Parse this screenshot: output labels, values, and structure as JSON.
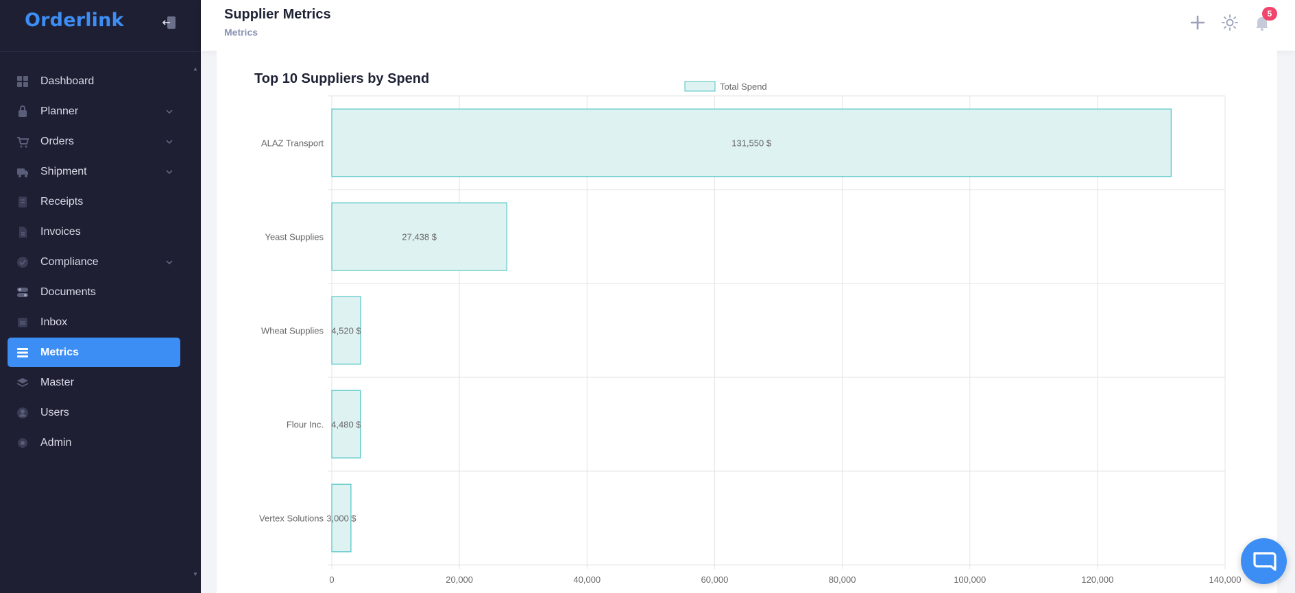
{
  "app": {
    "name": "Orderlink"
  },
  "sidebar": {
    "items": [
      {
        "label": "Dashboard",
        "icon": "dashboard-icon",
        "has_submenu": false
      },
      {
        "label": "Planner",
        "icon": "planner-icon",
        "has_submenu": true
      },
      {
        "label": "Orders",
        "icon": "orders-icon",
        "has_submenu": true
      },
      {
        "label": "Shipment",
        "icon": "shipment-icon",
        "has_submenu": true
      },
      {
        "label": "Receipts",
        "icon": "receipts-icon",
        "has_submenu": false
      },
      {
        "label": "Invoices",
        "icon": "invoices-icon",
        "has_submenu": false
      },
      {
        "label": "Compliance",
        "icon": "compliance-icon",
        "has_submenu": true
      },
      {
        "label": "Documents",
        "icon": "documents-icon",
        "has_submenu": false
      },
      {
        "label": "Inbox",
        "icon": "inbox-icon",
        "has_submenu": false
      },
      {
        "label": "Metrics",
        "icon": "metrics-icon",
        "has_submenu": false,
        "active": true
      },
      {
        "label": "Master",
        "icon": "master-icon",
        "has_submenu": false
      },
      {
        "label": "Users",
        "icon": "users-icon",
        "has_submenu": false
      },
      {
        "label": "Admin",
        "icon": "admin-icon",
        "has_submenu": false
      }
    ]
  },
  "header": {
    "title": "Supplier Metrics",
    "subtitle": "Metrics",
    "notifications_count": "5"
  },
  "colors": {
    "sidebar_bg": "#1e1f33",
    "accent": "#3d8ef4",
    "bar_fill": "#dff2f2",
    "bar_stroke": "#4fc3c3",
    "badge": "#f0466b"
  },
  "chart_data": {
    "type": "bar",
    "orientation": "horizontal",
    "title": "Top 10 Suppliers by Spend",
    "legend": [
      "Total Spend"
    ],
    "legend_position": "top-center",
    "categories": [
      "ALAZ Transport",
      "Yeast Supplies",
      "Wheat Supplies",
      "Flour Inc.",
      "Vertex Solutions"
    ],
    "series": [
      {
        "name": "Total Spend",
        "values": [
          131550,
          27438,
          4520,
          4480,
          3000
        ]
      }
    ],
    "data_labels": [
      "131,550 $",
      "27,438 $",
      "4,520 $",
      "4,480 $",
      "3,000 $"
    ],
    "xlim": [
      0,
      140000
    ],
    "x_ticks": [
      "0",
      "20,000",
      "40,000",
      "60,000",
      "80,000",
      "100,000",
      "120,000",
      "140,000"
    ],
    "grid": true
  }
}
